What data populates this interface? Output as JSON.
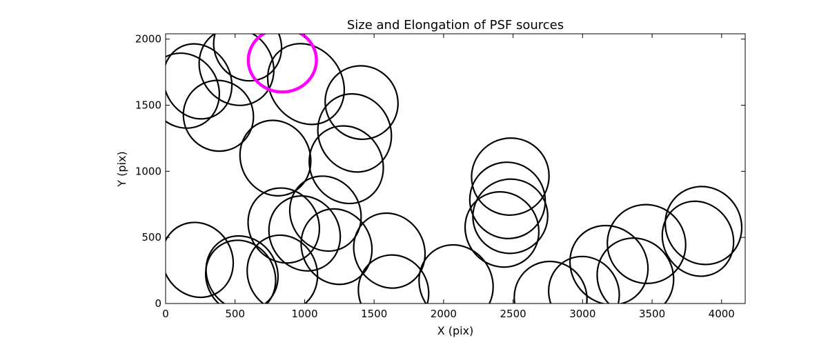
{
  "chart_data": {
    "type": "scatter",
    "title": "Size and Elongation of PSF sources",
    "xlabel": "X (pix)",
    "ylabel": "Y (pix)",
    "xlim": [
      0,
      4170
    ],
    "ylim": [
      0,
      2040
    ],
    "xticks": [
      0,
      500,
      1000,
      1500,
      2000,
      2500,
      3000,
      3500,
      4000
    ],
    "yticks": [
      0,
      500,
      1000,
      1500,
      2000
    ],
    "grid": false,
    "legend": "none",
    "colors": {
      "source": "#000000",
      "highlight": "#ff00ff"
    },
    "sources": [
      {
        "x": 130,
        "y": 1610,
        "rx": 250,
        "ry": 290,
        "angle": -30
      },
      {
        "x": 230,
        "y": 1680,
        "rx": 240,
        "ry": 290,
        "angle": -25
      },
      {
        "x": 380,
        "y": 1420,
        "rx": 250,
        "ry": 270,
        "angle": -35
      },
      {
        "x": 510,
        "y": 1790,
        "rx": 260,
        "ry": 300,
        "angle": -35
      },
      {
        "x": 590,
        "y": 1950,
        "rx": 240,
        "ry": 270,
        "angle": -30
      },
      {
        "x": 1010,
        "y": 1660,
        "rx": 260,
        "ry": 320,
        "angle": -35
      },
      {
        "x": 1410,
        "y": 1520,
        "rx": 260,
        "ry": 280,
        "angle": -35
      },
      {
        "x": 1360,
        "y": 1290,
        "rx": 260,
        "ry": 300,
        "angle": -25
      },
      {
        "x": 790,
        "y": 1100,
        "rx": 250,
        "ry": 290,
        "angle": -25
      },
      {
        "x": 1300,
        "y": 1050,
        "rx": 260,
        "ry": 300,
        "angle": -30
      },
      {
        "x": 1150,
        "y": 680,
        "rx": 250,
        "ry": 290,
        "angle": -30
      },
      {
        "x": 850,
        "y": 590,
        "rx": 250,
        "ry": 290,
        "angle": -30
      },
      {
        "x": 1000,
        "y": 530,
        "rx": 250,
        "ry": 290,
        "angle": -30
      },
      {
        "x": 1230,
        "y": 430,
        "rx": 250,
        "ry": 290,
        "angle": -25
      },
      {
        "x": 1610,
        "y": 400,
        "rx": 250,
        "ry": 290,
        "angle": -30
      },
      {
        "x": 230,
        "y": 330,
        "rx": 250,
        "ry": 290,
        "angle": -30
      },
      {
        "x": 550,
        "y": 230,
        "rx": 250,
        "ry": 290,
        "angle": -35
      },
      {
        "x": 540,
        "y": 200,
        "rx": 245,
        "ry": 285,
        "angle": -30
      },
      {
        "x": 840,
        "y": 230,
        "rx": 250,
        "ry": 290,
        "angle": -20
      },
      {
        "x": 1640,
        "y": 90,
        "rx": 250,
        "ry": 280,
        "angle": -25
      },
      {
        "x": 2090,
        "y": 150,
        "rx": 260,
        "ry": 300,
        "angle": -30
      },
      {
        "x": 2480,
        "y": 960,
        "rx": 280,
        "ry": 290,
        "angle": -35
      },
      {
        "x": 2460,
        "y": 780,
        "rx": 270,
        "ry": 290,
        "angle": -30
      },
      {
        "x": 2480,
        "y": 660,
        "rx": 270,
        "ry": 280,
        "angle": -30
      },
      {
        "x": 2420,
        "y": 560,
        "rx": 260,
        "ry": 290,
        "angle": -35
      },
      {
        "x": 2770,
        "y": 40,
        "rx": 260,
        "ry": 280,
        "angle": -30
      },
      {
        "x": 3010,
        "y": 80,
        "rx": 250,
        "ry": 280,
        "angle": -30
      },
      {
        "x": 3190,
        "y": 290,
        "rx": 270,
        "ry": 310,
        "angle": -40
      },
      {
        "x": 3380,
        "y": 200,
        "rx": 270,
        "ry": 300,
        "angle": -35
      },
      {
        "x": 3460,
        "y": 450,
        "rx": 280,
        "ry": 300,
        "angle": -35
      },
      {
        "x": 3830,
        "y": 490,
        "rx": 250,
        "ry": 290,
        "angle": -30
      },
      {
        "x": 3870,
        "y": 590,
        "rx": 270,
        "ry": 300,
        "angle": -35
      }
    ],
    "highlight": {
      "x": 840,
      "y": 1840,
      "rx": 245,
      "ry": 240,
      "angle": 0
    }
  }
}
